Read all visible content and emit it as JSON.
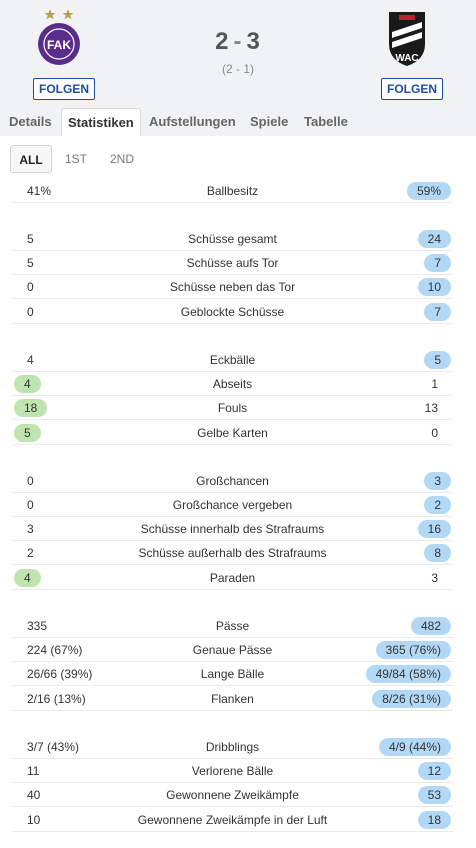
{
  "match": {
    "home_follow": "FOLGEN",
    "away_follow": "FOLGEN",
    "home_score": "2",
    "score_separator": "-",
    "away_score": "3",
    "halftime": "(2 - 1)",
    "home_logo_icon": "austria-wien-crest-icon",
    "away_logo_icon": "wac-crest-icon"
  },
  "tabs": [
    "Details",
    "Statistiken",
    "Aufstellungen",
    "Spiele",
    "Tabelle"
  ],
  "active_tab": "Statistiken",
  "subtabs": [
    "ALL",
    "1ST",
    "2ND"
  ],
  "active_subtab": "ALL",
  "colors": {
    "home_highlight": "#bfe4b0",
    "away_highlight": "#b3d8f6",
    "follow": "#1d4e9a"
  },
  "stats": [
    {
      "label": "Ballbesitz",
      "home": "41%",
      "away": "59%",
      "hl": "away"
    },
    {
      "label": "Schüsse gesamt",
      "home": "5",
      "away": "24",
      "hl": "away"
    },
    {
      "label": "Schüsse aufs Tor",
      "home": "5",
      "away": "7",
      "hl": "away"
    },
    {
      "label": "Schüsse neben das Tor",
      "home": "0",
      "away": "10",
      "hl": "away"
    },
    {
      "label": "Geblockte Schüsse",
      "home": "0",
      "away": "7",
      "hl": "away"
    },
    {
      "label": "Eckbälle",
      "home": "4",
      "away": "5",
      "hl": "away"
    },
    {
      "label": "Abseits",
      "home": "4",
      "away": "1",
      "hl": "home"
    },
    {
      "label": "Fouls",
      "home": "18",
      "away": "13",
      "hl": "home"
    },
    {
      "label": "Gelbe Karten",
      "home": "5",
      "away": "0",
      "hl": "home"
    },
    {
      "label": "Großchancen",
      "home": "0",
      "away": "3",
      "hl": "away"
    },
    {
      "label": "Großchance vergeben",
      "home": "0",
      "away": "2",
      "hl": "away"
    },
    {
      "label": "Schüsse innerhalb des Strafraums",
      "home": "3",
      "away": "16",
      "hl": "away"
    },
    {
      "label": "Schüsse außerhalb des Strafraums",
      "home": "2",
      "away": "8",
      "hl": "away"
    },
    {
      "label": "Paraden",
      "home": "4",
      "away": "3",
      "hl": "home"
    },
    {
      "label": "Pässe",
      "home": "335",
      "away": "482",
      "hl": "away"
    },
    {
      "label": "Genaue Pässe",
      "home": "224 (67%)",
      "away": "365 (76%)",
      "hl": "away"
    },
    {
      "label": "Lange Bälle",
      "home": "26/66 (39%)",
      "away": "49/84 (58%)",
      "hl": "away"
    },
    {
      "label": "Flanken",
      "home": "2/16 (13%)",
      "away": "8/26 (31%)",
      "hl": "away"
    },
    {
      "label": "Dribblings",
      "home": "3/7 (43%)",
      "away": "4/9 (44%)",
      "hl": "away"
    },
    {
      "label": "Verlorene Bälle",
      "home": "11",
      "away": "12",
      "hl": "away"
    },
    {
      "label": "Gewonnene Zweikämpfe",
      "home": "40",
      "away": "53",
      "hl": "away"
    },
    {
      "label": "Gewonnene Zweikämpfe in der Luft",
      "home": "10",
      "away": "18",
      "hl": "away"
    }
  ]
}
